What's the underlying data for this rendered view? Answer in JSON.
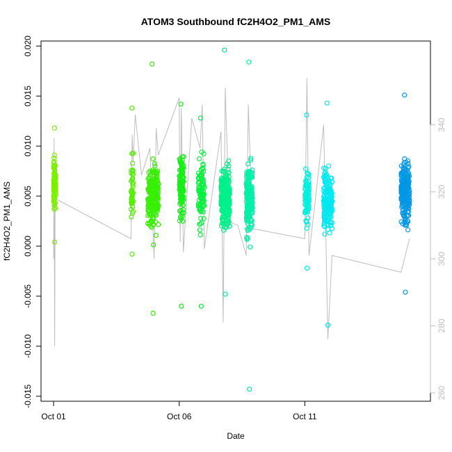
{
  "chart_data": {
    "type": "scatter",
    "title": "ATOM3 Southbound fC2H4O2_PM1_AMS",
    "xlabel": "Date",
    "ylabel": "fC2H4O2_PM1_AMS",
    "x_type": "date",
    "xlim": [
      "2016-09-30T12:00",
      "2016-10-16T00:00"
    ],
    "ylim": [
      -0.0155,
      0.0205
    ],
    "y_ticks": [
      -0.015,
      -0.01,
      -0.005,
      0.0,
      0.005,
      0.01,
      0.015,
      0.02
    ],
    "y_tick_labels": [
      "-0.015",
      "-0.010",
      "-0.005",
      "0.000",
      "0.005",
      "0.010",
      "0.015",
      "0.020"
    ],
    "x_ticks": [
      "2016-10-01",
      "2016-10-06",
      "2016-10-11"
    ],
    "x_tick_labels": [
      "Oct 01",
      "Oct 06",
      "Oct 11"
    ],
    "y2_label": "",
    "y2lim": [
      257.5,
      365
    ],
    "y2_ticks": [
      260,
      280,
      300,
      320,
      340
    ],
    "y2_tick_labels": [
      "260",
      "280",
      "300",
      "320",
      "340"
    ],
    "y2_color": "#bdbdbd",
    "grid": false,
    "marker": "open-circle",
    "clusters": [
      {
        "x_start": "2016-10-01T00:00",
        "x_end": "2016-10-01T02:00",
        "y_center": 0.006,
        "y_sd": 0.0025,
        "y_min": 0.0004,
        "y_max": 0.0118,
        "n": 90,
        "color": "#7cf000"
      },
      {
        "x_start": "2016-10-04T02:00",
        "x_end": "2016-10-04T04:00",
        "y_center": 0.006,
        "y_sd": 0.0028,
        "y_min": -0.0008,
        "y_max": 0.0138,
        "n": 45,
        "color": "#52f000"
      },
      {
        "x_start": "2016-10-04T18:00",
        "x_end": "2016-10-05T04:00",
        "y_center": 0.005,
        "y_sd": 0.003,
        "y_min": -0.0067,
        "y_max": 0.0182,
        "n": 220,
        "color": "#36f000"
      },
      {
        "x_start": "2016-10-06T00:00",
        "x_end": "2016-10-06T04:00",
        "y_center": 0.006,
        "y_sd": 0.003,
        "y_min": -0.006,
        "y_max": 0.0142,
        "n": 110,
        "color": "#14f014"
      },
      {
        "x_start": "2016-10-06T18:00",
        "x_end": "2016-10-07T00:00",
        "y_center": 0.0055,
        "y_sd": 0.0032,
        "y_min": -0.006,
        "y_max": 0.0128,
        "n": 90,
        "color": "#0af040"
      },
      {
        "x_start": "2016-10-07T16:00",
        "x_end": "2016-10-08T00:00",
        "y_center": 0.005,
        "y_sd": 0.0025,
        "y_min": -0.0048,
        "y_max": 0.0196,
        "n": 300,
        "color": "#00f08a"
      },
      {
        "x_start": "2016-10-08T16:00",
        "x_end": "2016-10-08T22:00",
        "y_center": 0.005,
        "y_sd": 0.003,
        "y_min": -0.0143,
        "y_max": 0.0184,
        "n": 210,
        "color": "#00f0a8"
      },
      {
        "x_start": "2016-10-11T00:00",
        "x_end": "2016-10-11T04:00",
        "y_center": 0.0048,
        "y_sd": 0.0022,
        "y_min": -0.0022,
        "y_max": 0.0131,
        "n": 90,
        "color": "#00f0e0"
      },
      {
        "x_start": "2016-10-11T18:00",
        "x_end": "2016-10-12T02:00",
        "y_center": 0.0045,
        "y_sd": 0.0028,
        "y_min": -0.0079,
        "y_max": 0.0143,
        "n": 180,
        "color": "#00e8f0"
      },
      {
        "x_start": "2016-10-14T20:00",
        "x_end": "2016-10-15T04:00",
        "y_center": 0.0055,
        "y_sd": 0.0028,
        "y_min": -0.0046,
        "y_max": 0.0151,
        "n": 220,
        "color": "#0098e6"
      }
    ],
    "y2_series": {
      "name": "",
      "color": "#bdbdbd",
      "points": [
        [
          "2016-10-01T00:00",
          300
        ],
        [
          "2016-10-01T00:30",
          336
        ],
        [
          "2016-10-01T01:00",
          274
        ],
        [
          "2016-10-01T01:30",
          318
        ],
        [
          "2016-10-04T02:00",
          306
        ],
        [
          "2016-10-04T03:00",
          337
        ],
        [
          "2016-10-04T04:00",
          329
        ],
        [
          "2016-10-04T06:00",
          343
        ],
        [
          "2016-10-04T12:00",
          325
        ],
        [
          "2016-10-04T20:00",
          333
        ],
        [
          "2016-10-05T00:00",
          300
        ],
        [
          "2016-10-05T02:00",
          339
        ],
        [
          "2016-10-05T04:00",
          331
        ],
        [
          "2016-10-06T00:00",
          348
        ],
        [
          "2016-10-06T01:00",
          305
        ],
        [
          "2016-10-06T02:00",
          345
        ],
        [
          "2016-10-06T04:00",
          302
        ],
        [
          "2016-10-06T12:00",
          342
        ],
        [
          "2016-10-06T20:00",
          333
        ],
        [
          "2016-10-06T22:00",
          346
        ],
        [
          "2016-10-07T00:00",
          303
        ],
        [
          "2016-10-07T16:00",
          338
        ],
        [
          "2016-10-07T18:00",
          281
        ],
        [
          "2016-10-07T20:00",
          351
        ],
        [
          "2016-10-08T00:00",
          311
        ],
        [
          "2016-10-08T08:00",
          310
        ],
        [
          "2016-10-08T16:00",
          301
        ],
        [
          "2016-10-08T18:00",
          346
        ],
        [
          "2016-10-08T22:00",
          309
        ],
        [
          "2016-10-11T00:00",
          306
        ],
        [
          "2016-10-11T02:00",
          354
        ],
        [
          "2016-10-11T04:00",
          301
        ],
        [
          "2016-10-11T18:00",
          340
        ],
        [
          "2016-10-11T22:00",
          276
        ],
        [
          "2016-10-12T02:00",
          301
        ],
        [
          "2016-10-14T20:00",
          296
        ],
        [
          "2016-10-15T04:00",
          306
        ]
      ]
    }
  }
}
